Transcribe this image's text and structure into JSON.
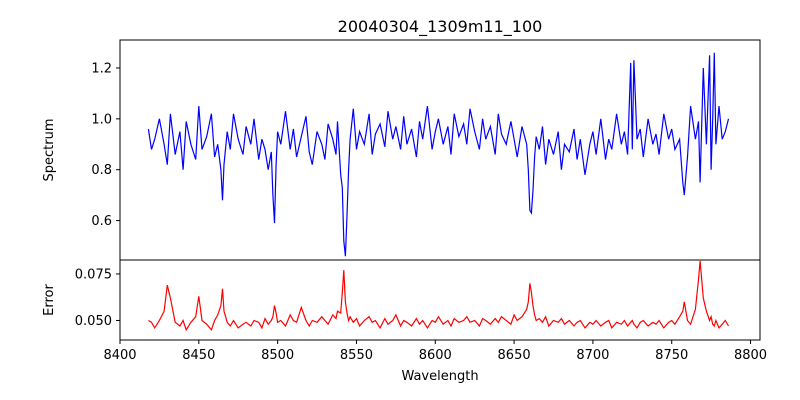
{
  "chart_data": {
    "type": "line",
    "title": "20040304_1309m11_100",
    "xlabel": "Wavelength",
    "xlim": [
      8400,
      8806
    ],
    "xticks": [
      8400,
      8450,
      8500,
      8550,
      8600,
      8650,
      8700,
      8750,
      8800
    ],
    "panels": [
      {
        "name": "spectrum",
        "ylabel": "Spectrum",
        "ylim": [
          0.445,
          1.31
        ],
        "yticks": [
          0.6,
          0.8,
          1.0,
          1.2
        ],
        "ytick_labels": [
          "0.6",
          "0.8",
          "1.0",
          "1.2"
        ],
        "color": "#0000ff",
        "x": [
          8418,
          8420,
          8422,
          8425,
          8428,
          8430,
          8432,
          8435,
          8438,
          8440,
          8442,
          8445,
          8448,
          8450,
          8452,
          8455,
          8458,
          8460,
          8462,
          8464,
          8465,
          8466,
          8468,
          8470,
          8472,
          8475,
          8478,
          8480,
          8483,
          8485,
          8488,
          8490,
          8492,
          8494,
          8496,
          8497,
          8498,
          8499,
          8500,
          8502,
          8505,
          8508,
          8510,
          8512,
          8515,
          8518,
          8520,
          8522,
          8525,
          8528,
          8530,
          8532,
          8535,
          8537,
          8538,
          8540,
          8541,
          8542,
          8543,
          8544,
          8545,
          8546,
          8548,
          8550,
          8552,
          8555,
          8558,
          8560,
          8562,
          8565,
          8568,
          8570,
          8573,
          8575,
          8578,
          8580,
          8582,
          8585,
          8588,
          8590,
          8592,
          8595,
          8598,
          8600,
          8602,
          8605,
          8608,
          8610,
          8612,
          8615,
          8618,
          8620,
          8622,
          8625,
          8628,
          8630,
          8632,
          8635,
          8638,
          8640,
          8642,
          8645,
          8648,
          8650,
          8652,
          8655,
          8658,
          8659,
          8660,
          8661,
          8662,
          8663,
          8664,
          8666,
          8668,
          8670,
          8672,
          8675,
          8678,
          8680,
          8682,
          8685,
          8688,
          8690,
          8692,
          8695,
          8698,
          8700,
          8702,
          8705,
          8708,
          8710,
          8712,
          8715,
          8718,
          8720,
          8722,
          8724,
          8725,
          8726,
          8728,
          8730,
          8732,
          8735,
          8738,
          8740,
          8742,
          8745,
          8748,
          8750,
          8752,
          8755,
          8757,
          8758,
          8760,
          8762,
          8765,
          8767,
          8768,
          8770,
          8772,
          8774,
          8775,
          8776,
          8777,
          8778,
          8780,
          8782,
          8784,
          8786
        ],
        "y": [
          0.96,
          0.88,
          0.92,
          1.0,
          0.9,
          0.82,
          1.02,
          0.86,
          0.95,
          0.8,
          0.99,
          0.9,
          0.84,
          1.05,
          0.88,
          0.93,
          1.02,
          0.85,
          0.9,
          0.8,
          0.68,
          0.82,
          0.95,
          0.88,
          1.02,
          0.92,
          0.86,
          0.97,
          0.9,
          1.0,
          0.84,
          0.92,
          0.88,
          0.8,
          0.87,
          0.7,
          0.59,
          0.82,
          0.95,
          0.9,
          1.03,
          0.88,
          0.96,
          0.85,
          0.93,
          1.01,
          0.87,
          0.82,
          0.95,
          0.9,
          0.84,
          0.98,
          0.92,
          0.86,
          0.99,
          0.78,
          0.73,
          0.52,
          0.46,
          0.62,
          0.8,
          0.92,
          1.04,
          0.88,
          0.95,
          0.9,
          1.02,
          0.86,
          0.94,
          0.98,
          0.89,
          1.03,
          0.92,
          0.97,
          0.88,
          1.01,
          0.9,
          0.96,
          0.85,
          0.99,
          0.92,
          1.05,
          0.88,
          0.95,
          1.0,
          0.9,
          0.97,
          0.86,
          1.02,
          0.93,
          0.98,
          0.9,
          1.04,
          0.95,
          0.88,
          1.0,
          0.92,
          0.97,
          0.86,
          1.02,
          0.94,
          0.9,
          0.99,
          0.92,
          0.85,
          0.97,
          0.9,
          0.8,
          0.64,
          0.63,
          0.72,
          0.85,
          0.93,
          0.88,
          0.97,
          0.82,
          0.92,
          0.86,
          0.95,
          0.8,
          0.9,
          0.87,
          0.96,
          0.84,
          0.92,
          0.78,
          0.9,
          0.95,
          0.86,
          1.0,
          0.84,
          0.92,
          0.88,
          1.02,
          0.9,
          0.95,
          0.86,
          1.22,
          0.88,
          1.23,
          0.92,
          0.96,
          0.85,
          1.0,
          0.9,
          0.94,
          0.86,
          1.02,
          0.92,
          0.96,
          0.88,
          0.92,
          0.75,
          0.7,
          0.85,
          1.05,
          0.92,
          0.99,
          0.75,
          1.2,
          0.9,
          1.25,
          0.8,
          1.0,
          1.26,
          0.9,
          1.05,
          0.92,
          0.95,
          1.0
        ]
      },
      {
        "name": "error",
        "ylabel": "Error",
        "ylim": [
          0.0395,
          0.0825
        ],
        "yticks": [
          0.05,
          0.075
        ],
        "ytick_labels": [
          "0.050",
          "0.075"
        ],
        "color": "#ff0000",
        "x": [
          8418,
          8420,
          8422,
          8425,
          8428,
          8430,
          8432,
          8435,
          8438,
          8440,
          8442,
          8445,
          8448,
          8450,
          8452,
          8455,
          8458,
          8460,
          8462,
          8464,
          8465,
          8466,
          8468,
          8470,
          8472,
          8475,
          8478,
          8480,
          8483,
          8485,
          8488,
          8490,
          8492,
          8494,
          8496,
          8497,
          8498,
          8499,
          8500,
          8502,
          8505,
          8508,
          8510,
          8512,
          8515,
          8518,
          8520,
          8522,
          8525,
          8528,
          8530,
          8532,
          8535,
          8537,
          8538,
          8540,
          8541,
          8542,
          8543,
          8544,
          8545,
          8546,
          8548,
          8550,
          8552,
          8555,
          8558,
          8560,
          8562,
          8565,
          8568,
          8570,
          8573,
          8575,
          8578,
          8580,
          8582,
          8585,
          8588,
          8590,
          8592,
          8595,
          8598,
          8600,
          8602,
          8605,
          8608,
          8610,
          8612,
          8615,
          8618,
          8620,
          8622,
          8625,
          8628,
          8630,
          8632,
          8635,
          8638,
          8640,
          8642,
          8645,
          8648,
          8650,
          8652,
          8655,
          8658,
          8659,
          8660,
          8661,
          8662,
          8663,
          8664,
          8666,
          8668,
          8670,
          8672,
          8675,
          8678,
          8680,
          8682,
          8685,
          8688,
          8690,
          8692,
          8695,
          8698,
          8700,
          8702,
          8705,
          8708,
          8710,
          8712,
          8715,
          8718,
          8720,
          8722,
          8724,
          8725,
          8726,
          8728,
          8730,
          8732,
          8735,
          8738,
          8740,
          8742,
          8745,
          8748,
          8750,
          8752,
          8755,
          8757,
          8758,
          8760,
          8762,
          8765,
          8767,
          8768,
          8770,
          8772,
          8774,
          8775,
          8776,
          8777,
          8778,
          8780,
          8782,
          8784,
          8786
        ],
        "y": [
          0.05,
          0.049,
          0.046,
          0.05,
          0.055,
          0.069,
          0.062,
          0.049,
          0.047,
          0.05,
          0.045,
          0.049,
          0.052,
          0.063,
          0.05,
          0.048,
          0.045,
          0.05,
          0.053,
          0.058,
          0.067,
          0.055,
          0.049,
          0.047,
          0.05,
          0.046,
          0.048,
          0.049,
          0.047,
          0.05,
          0.049,
          0.046,
          0.051,
          0.048,
          0.05,
          0.052,
          0.058,
          0.054,
          0.049,
          0.05,
          0.047,
          0.053,
          0.05,
          0.049,
          0.057,
          0.05,
          0.047,
          0.05,
          0.049,
          0.052,
          0.05,
          0.048,
          0.053,
          0.051,
          0.055,
          0.054,
          0.065,
          0.077,
          0.06,
          0.054,
          0.05,
          0.052,
          0.049,
          0.051,
          0.047,
          0.05,
          0.052,
          0.049,
          0.05,
          0.046,
          0.051,
          0.048,
          0.05,
          0.053,
          0.047,
          0.05,
          0.049,
          0.047,
          0.051,
          0.048,
          0.05,
          0.046,
          0.05,
          0.049,
          0.052,
          0.048,
          0.05,
          0.047,
          0.051,
          0.049,
          0.05,
          0.052,
          0.049,
          0.05,
          0.047,
          0.051,
          0.05,
          0.048,
          0.051,
          0.049,
          0.052,
          0.05,
          0.048,
          0.053,
          0.05,
          0.052,
          0.056,
          0.06,
          0.07,
          0.065,
          0.058,
          0.053,
          0.05,
          0.051,
          0.049,
          0.052,
          0.047,
          0.05,
          0.049,
          0.051,
          0.048,
          0.05,
          0.047,
          0.049,
          0.05,
          0.046,
          0.049,
          0.048,
          0.05,
          0.047,
          0.049,
          0.05,
          0.046,
          0.049,
          0.048,
          0.05,
          0.047,
          0.049,
          0.05,
          0.048,
          0.046,
          0.049,
          0.05,
          0.047,
          0.049,
          0.048,
          0.05,
          0.046,
          0.049,
          0.05,
          0.048,
          0.052,
          0.055,
          0.06,
          0.05,
          0.048,
          0.056,
          0.072,
          0.082,
          0.062,
          0.055,
          0.05,
          0.052,
          0.048,
          0.047,
          0.05,
          0.046,
          0.048,
          0.05,
          0.047
        ]
      }
    ]
  }
}
